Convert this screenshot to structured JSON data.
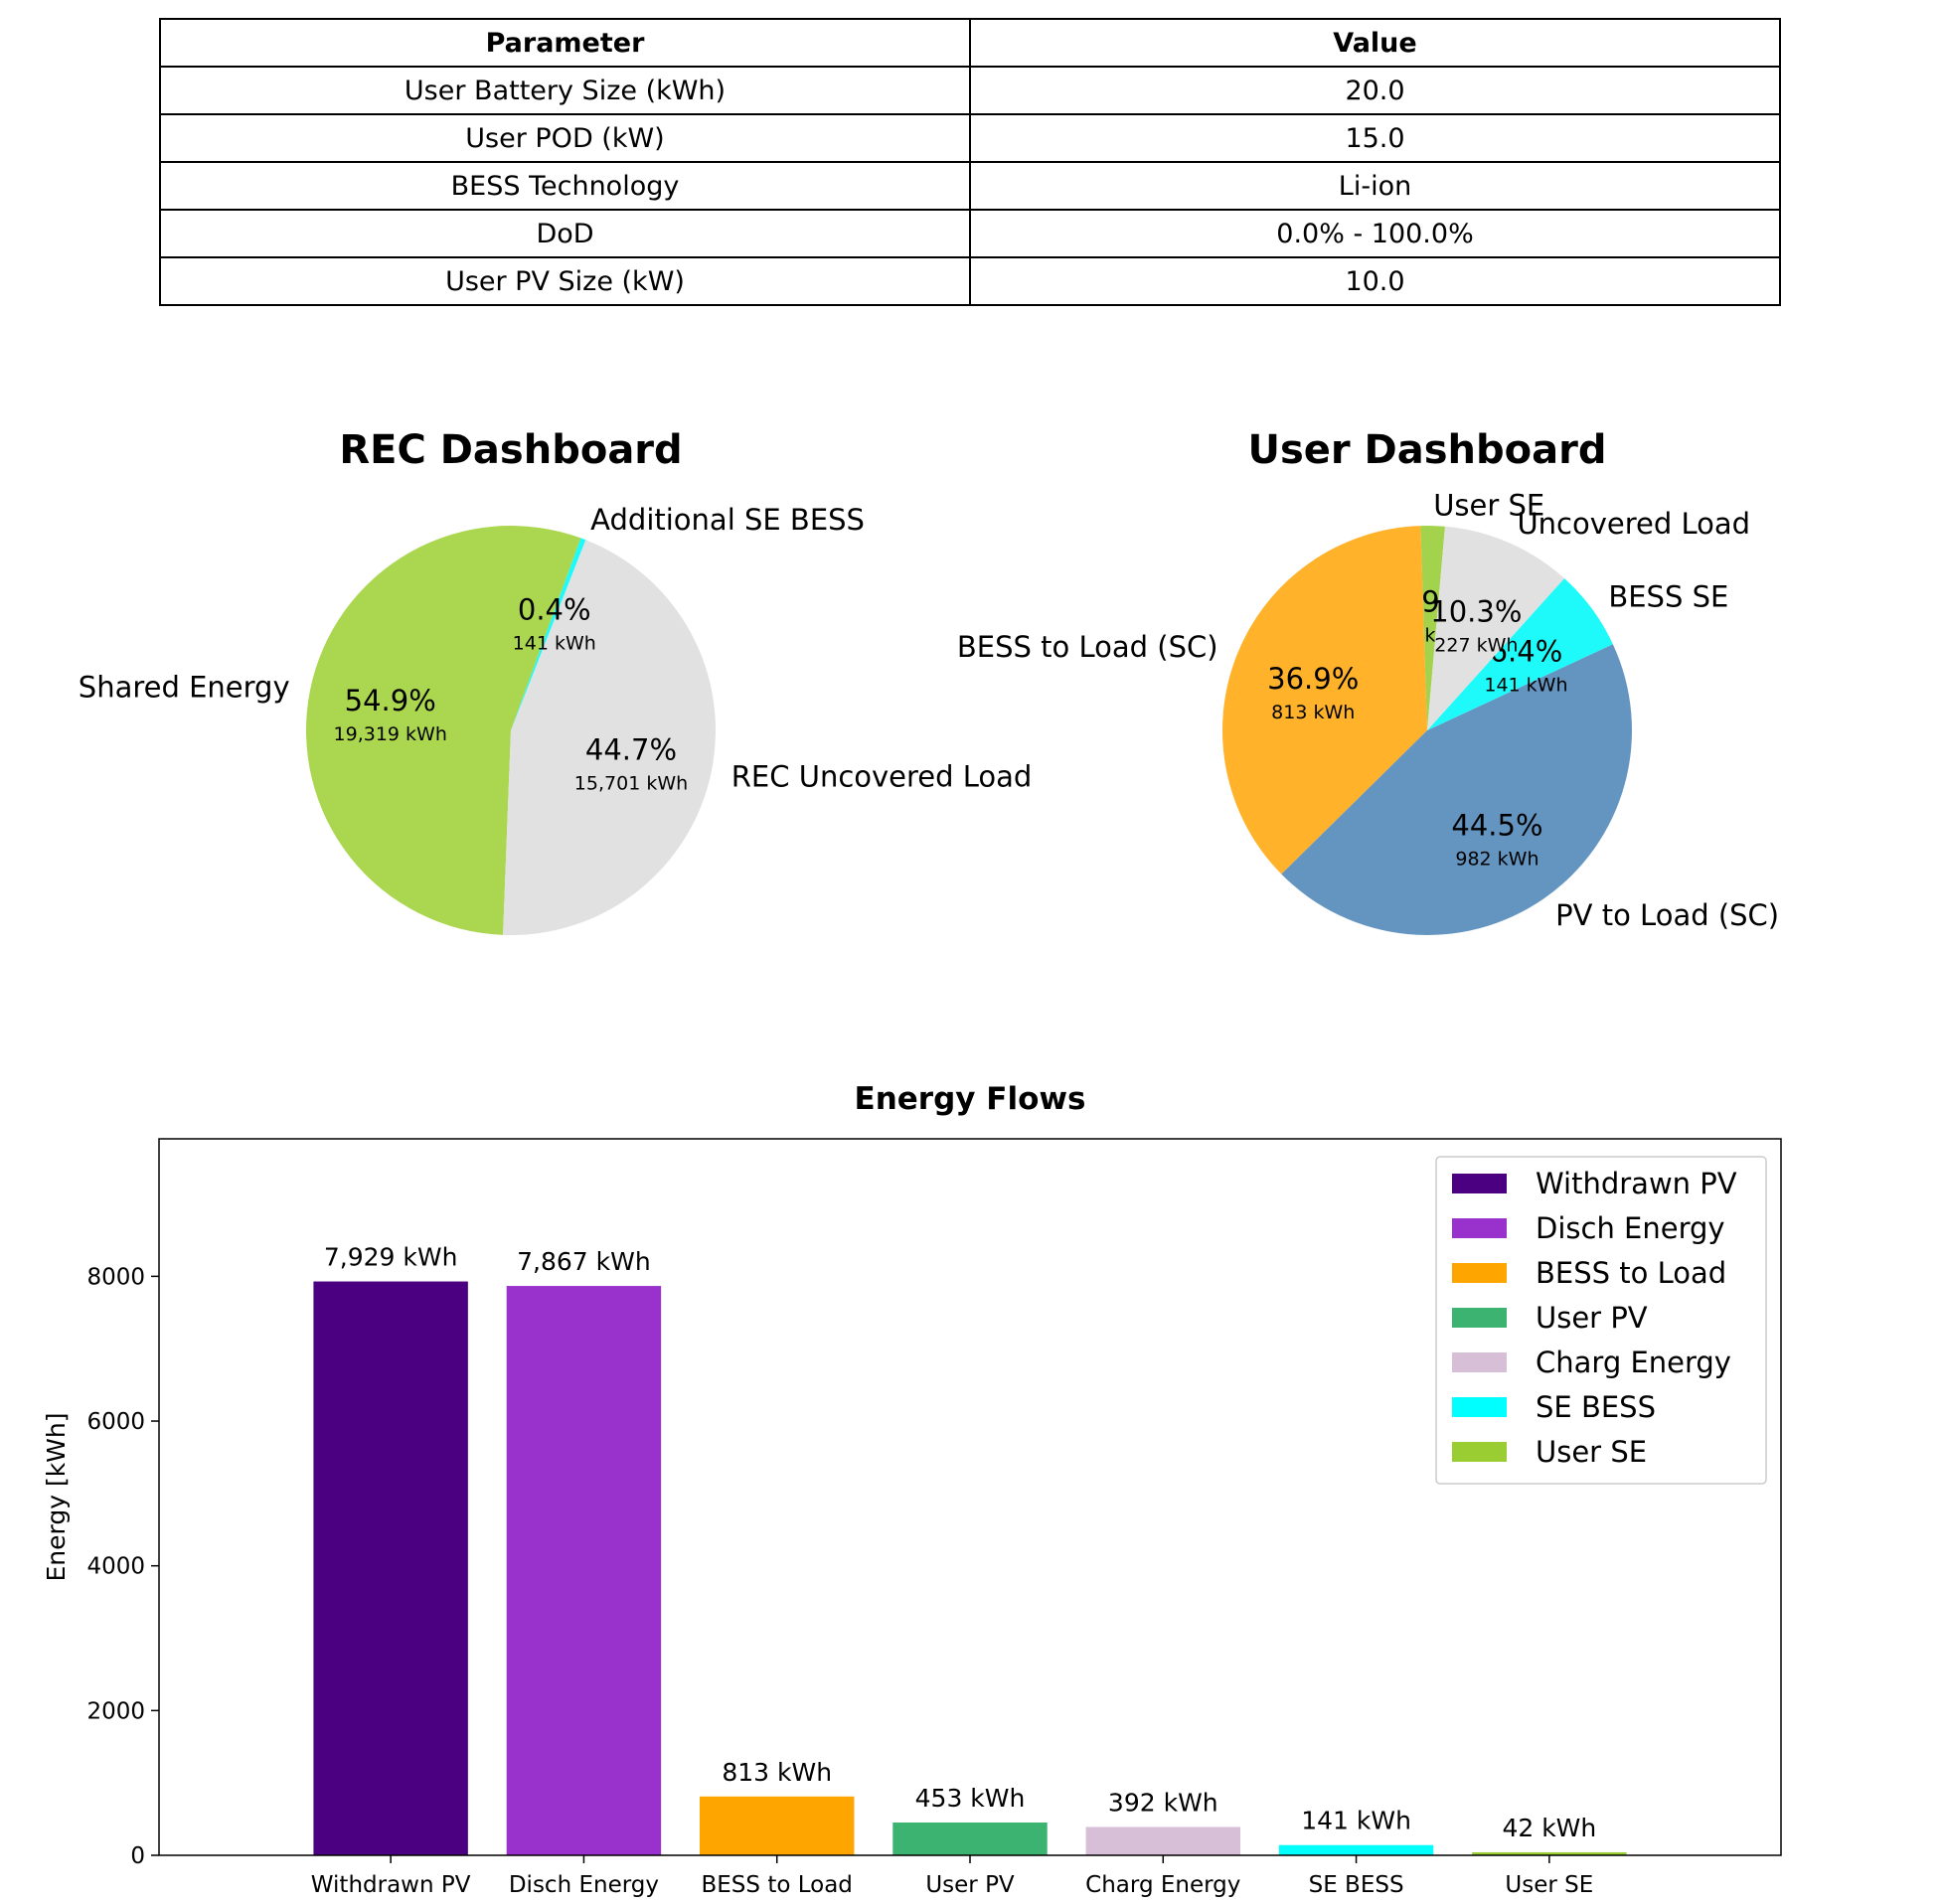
{
  "table": {
    "headers": [
      "Parameter",
      "Value"
    ],
    "rows": [
      [
        "User Battery Size (kWh)",
        "20.0"
      ],
      [
        "User POD (kW)",
        "15.0"
      ],
      [
        "BESS Technology",
        "Li-ion"
      ],
      [
        "DoD",
        "0.0% - 100.0%"
      ],
      [
        "User PV Size (kW)",
        "10.0"
      ]
    ]
  },
  "chart_data": [
    {
      "type": "pie",
      "title": "REC Dashboard",
      "start_angle_deg": 70,
      "slices": [
        {
          "label": "Shared Energy",
          "pct": "54.9%",
          "kwh": "19,319 kWh",
          "value": 19319,
          "color": "#abd64f"
        },
        {
          "label": "REC Uncovered Load",
          "pct": "44.7%",
          "kwh": "15,701 kWh",
          "value": 15701,
          "color": "#e1e1e1"
        },
        {
          "label": "Additional SE BESS",
          "pct": "0.4%",
          "kwh": "141 kWh",
          "value": 141,
          "color": "#1efafa"
        }
      ]
    },
    {
      "type": "pie",
      "title": "User Dashboard",
      "start_angle_deg": 85,
      "slices": [
        {
          "label": "User SE",
          "pct": "1.9%",
          "kwh": "42 kWh",
          "value": 42,
          "color": "#a3d24d"
        },
        {
          "label": "BESS to Load (SC)",
          "pct": "36.9%",
          "kwh": "813 kWh",
          "value": 813,
          "color": "#ffb22a"
        },
        {
          "label": "PV to Load (SC)",
          "pct": "44.5%",
          "kwh": "982 kWh",
          "value": 982,
          "color": "#6495c1"
        },
        {
          "label": "BESS SE",
          "pct": "6.4%",
          "kwh": "141 kWh",
          "value": 141,
          "color": "#1efafa"
        },
        {
          "label": "Uncovered Load",
          "pct": "10.3%",
          "kwh": "227 kWh",
          "value": 227,
          "color": "#e1e1e1"
        }
      ]
    },
    {
      "type": "bar",
      "title": "Energy Flows",
      "ylabel": "Energy [kWh]",
      "xlabel": "",
      "ylim": [
        0,
        9900
      ],
      "yticks": [
        0,
        2000,
        4000,
        6000,
        8000
      ],
      "grid": false,
      "legend_position": "top-right",
      "categories": [
        "Withdrawn PV",
        "Disch Energy",
        "BESS to Load",
        "User PV",
        "Charg Energy",
        "SE BESS",
        "User SE"
      ],
      "values": [
        7929,
        7867,
        813,
        453,
        392,
        141,
        42
      ],
      "value_labels": [
        "7,929 kWh",
        "7,867 kWh",
        "813 kWh",
        "453 kWh",
        "392 kWh",
        "141 kWh",
        "42 kWh"
      ],
      "colors": [
        "#4b0082",
        "#9932cc",
        "#ffa500",
        "#3cb371",
        "#d8bfd8",
        "#00ffff",
        "#9acd32"
      ],
      "legend": [
        "Withdrawn PV",
        "Disch Energy",
        "BESS to Load",
        "User PV",
        "Charg Energy",
        "SE BESS",
        "User SE"
      ]
    }
  ]
}
